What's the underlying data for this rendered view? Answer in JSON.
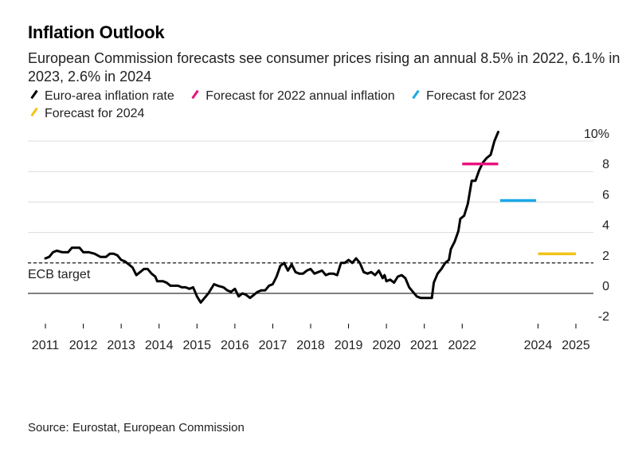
{
  "title": "Inflation Outlook",
  "subtitle": "European Commission forecasts see consumer prices rising an annual 8.5% in 2022, 6.1% in 2023, 2.6% in 2024",
  "source": "Source: Eurostat, European Commission",
  "legend": [
    {
      "label": "Euro-area inflation rate",
      "color": "#000000"
    },
    {
      "label": "Forecast for 2022 annual inflation",
      "color": "#e8137f"
    },
    {
      "label": "Forecast for 2023",
      "color": "#1aa8e8"
    },
    {
      "label": "Forecast for 2024",
      "color": "#f2c318"
    }
  ],
  "chart_data": {
    "type": "line",
    "ylim": [
      -2,
      10
    ],
    "y_ticks": [
      10,
      8,
      6,
      4,
      2,
      0,
      -2
    ],
    "y_tick_labels": [
      "10%",
      "8",
      "6",
      "4",
      "2",
      "0",
      "-2"
    ],
    "x_range": [
      2011,
      2025
    ],
    "x_ticks": [
      "2011",
      "2012",
      "2013",
      "2014",
      "2015",
      "2016",
      "2017",
      "2018",
      "2019",
      "2020",
      "2021",
      "2022",
      "2024",
      "2025"
    ],
    "grid": true,
    "legend_position": "top-left",
    "reference_line": {
      "label": "ECB target",
      "value": 2
    },
    "series": [
      {
        "name": "Euro-area inflation rate",
        "color": "#000000",
        "points": [
          [
            2011.0,
            2.3
          ],
          [
            2011.1,
            2.4
          ],
          [
            2011.2,
            2.7
          ],
          [
            2011.3,
            2.8
          ],
          [
            2011.45,
            2.7
          ],
          [
            2011.6,
            2.7
          ],
          [
            2011.7,
            3.0
          ],
          [
            2011.8,
            3.0
          ],
          [
            2011.9,
            3.0
          ],
          [
            2012.0,
            2.7
          ],
          [
            2012.15,
            2.7
          ],
          [
            2012.3,
            2.6
          ],
          [
            2012.45,
            2.4
          ],
          [
            2012.6,
            2.4
          ],
          [
            2012.7,
            2.6
          ],
          [
            2012.8,
            2.6
          ],
          [
            2012.9,
            2.5
          ],
          [
            2013.0,
            2.2
          ],
          [
            2013.1,
            2.1
          ],
          [
            2013.2,
            1.9
          ],
          [
            2013.3,
            1.7
          ],
          [
            2013.4,
            1.2
          ],
          [
            2013.5,
            1.4
          ],
          [
            2013.6,
            1.6
          ],
          [
            2013.7,
            1.6
          ],
          [
            2013.8,
            1.3
          ],
          [
            2013.9,
            1.1
          ],
          [
            2013.95,
            0.8
          ],
          [
            2014.1,
            0.8
          ],
          [
            2014.2,
            0.7
          ],
          [
            2014.3,
            0.5
          ],
          [
            2014.4,
            0.5
          ],
          [
            2014.5,
            0.5
          ],
          [
            2014.6,
            0.4
          ],
          [
            2014.7,
            0.4
          ],
          [
            2014.8,
            0.3
          ],
          [
            2014.9,
            0.4
          ],
          [
            2015.0,
            -0.2
          ],
          [
            2015.1,
            -0.6
          ],
          [
            2015.2,
            -0.3
          ],
          [
            2015.3,
            0.0
          ],
          [
            2015.45,
            0.6
          ],
          [
            2015.55,
            0.5
          ],
          [
            2015.7,
            0.4
          ],
          [
            2015.8,
            0.2
          ],
          [
            2015.9,
            0.1
          ],
          [
            2016.0,
            0.3
          ],
          [
            2016.1,
            -0.2
          ],
          [
            2016.2,
            0.0
          ],
          [
            2016.3,
            -0.1
          ],
          [
            2016.4,
            -0.3
          ],
          [
            2016.5,
            -0.1
          ],
          [
            2016.6,
            0.1
          ],
          [
            2016.7,
            0.2
          ],
          [
            2016.8,
            0.2
          ],
          [
            2016.9,
            0.5
          ],
          [
            2017.0,
            0.6
          ],
          [
            2017.1,
            1.1
          ],
          [
            2017.2,
            1.8
          ],
          [
            2017.3,
            2.0
          ],
          [
            2017.4,
            1.5
          ],
          [
            2017.5,
            1.9
          ],
          [
            2017.6,
            1.4
          ],
          [
            2017.7,
            1.3
          ],
          [
            2017.8,
            1.3
          ],
          [
            2017.9,
            1.5
          ],
          [
            2018.0,
            1.6
          ],
          [
            2018.1,
            1.3
          ],
          [
            2018.2,
            1.4
          ],
          [
            2018.3,
            1.5
          ],
          [
            2018.4,
            1.2
          ],
          [
            2018.5,
            1.3
          ],
          [
            2018.6,
            1.3
          ],
          [
            2018.7,
            1.2
          ],
          [
            2018.8,
            2.0
          ],
          [
            2018.9,
            2.0
          ],
          [
            2019.0,
            2.2
          ],
          [
            2019.1,
            2.0
          ],
          [
            2019.2,
            2.3
          ],
          [
            2019.3,
            2.0
          ],
          [
            2019.4,
            1.4
          ],
          [
            2019.5,
            1.3
          ],
          [
            2019.6,
            1.4
          ],
          [
            2019.7,
            1.2
          ],
          [
            2019.8,
            1.5
          ],
          [
            2019.9,
            1.0
          ],
          [
            2019.95,
            1.2
          ],
          [
            2020.0,
            0.8
          ],
          [
            2020.1,
            0.9
          ],
          [
            2020.2,
            0.7
          ],
          [
            2020.3,
            1.1
          ],
          [
            2020.4,
            1.2
          ],
          [
            2020.5,
            1.0
          ],
          [
            2020.6,
            0.4
          ],
          [
            2020.7,
            0.1
          ],
          [
            2020.8,
            -0.2
          ],
          [
            2020.9,
            -0.3
          ],
          [
            2021.0,
            -0.3
          ],
          [
            2021.1,
            -0.3
          ],
          [
            2021.2,
            -0.3
          ],
          [
            2021.25,
            0.7
          ],
          [
            2021.35,
            1.3
          ],
          [
            2021.45,
            1.6
          ],
          [
            2021.55,
            2.0
          ],
          [
            2021.65,
            2.2
          ],
          [
            2021.7,
            2.9
          ],
          [
            2021.8,
            3.4
          ],
          [
            2021.9,
            4.1
          ],
          [
            2021.95,
            4.9
          ],
          [
            2022.05,
            5.1
          ],
          [
            2022.15,
            5.9
          ],
          [
            2022.25,
            7.4
          ],
          [
            2022.35,
            7.4
          ],
          [
            2022.45,
            8.1
          ],
          [
            2022.55,
            8.6
          ],
          [
            2022.65,
            8.9
          ],
          [
            2022.75,
            9.1
          ],
          [
            2022.85,
            10.0
          ],
          [
            2022.95,
            10.6
          ]
        ]
      },
      {
        "name": "Forecast for 2022 annual inflation",
        "color": "#e8137f",
        "x": [
          2022.0,
          2022.95
        ],
        "value": 8.5
      },
      {
        "name": "Forecast for 2023",
        "color": "#1aa8e8",
        "x": [
          2023.0,
          2023.95
        ],
        "value": 6.1
      },
      {
        "name": "Forecast for 2024",
        "color": "#f2c318",
        "x": [
          2024.0,
          2025.0
        ],
        "value": 2.6
      }
    ]
  }
}
